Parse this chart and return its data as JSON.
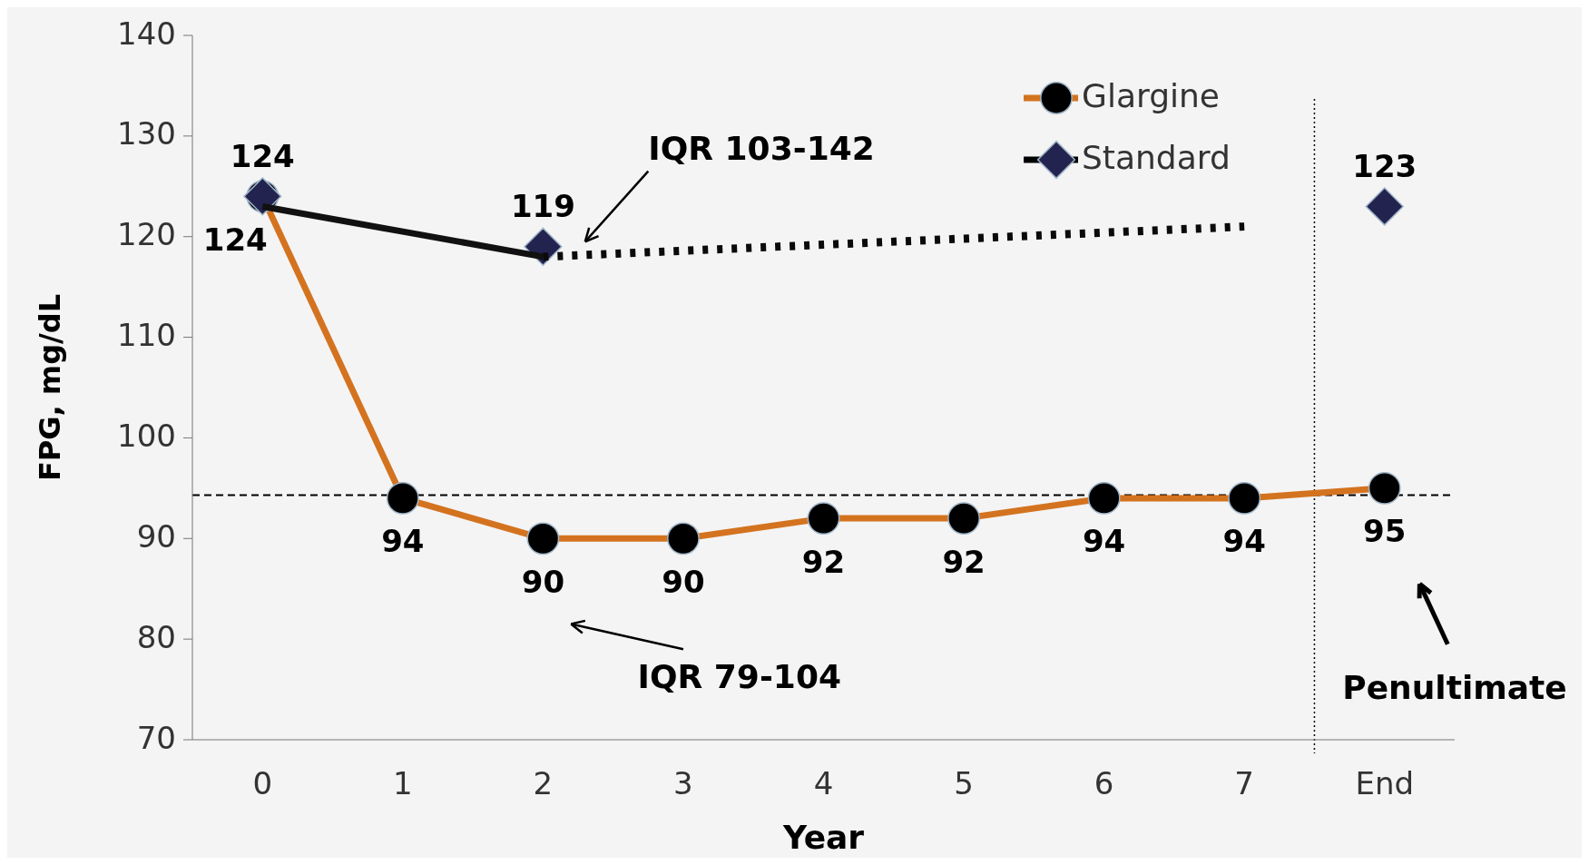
{
  "chart_data": {
    "type": "line",
    "xlabel": "Year",
    "ylabel": "FPG, mg/dL",
    "categories": [
      "0",
      "1",
      "2",
      "3",
      "4",
      "5",
      "6",
      "7",
      "End"
    ],
    "ylim": [
      70,
      140
    ],
    "yticks": [
      70,
      80,
      90,
      100,
      110,
      120,
      130,
      140
    ],
    "grid": false,
    "legend": "top right",
    "series": [
      {
        "name": "Glargine",
        "color": "#d4731f",
        "marker": "circle",
        "values": [
          124,
          94,
          90,
          90,
          92,
          92,
          94,
          94,
          95
        ],
        "value_labels": [
          "124",
          "94",
          "90",
          "90",
          "92",
          "92",
          "94",
          "94",
          "95"
        ]
      },
      {
        "name": "Standard",
        "type": "scatter",
        "color": "#23234f",
        "marker": "diamond",
        "values": [
          124,
          null,
          119,
          null,
          null,
          null,
          null,
          null,
          123
        ],
        "value_labels": [
          "124",
          null,
          "119",
          null,
          null,
          null,
          null,
          null,
          "123"
        ]
      },
      {
        "type": "line",
        "color": "#111111",
        "marker": "none",
        "values": [
          123,
          120.5,
          118,
          null,
          null,
          null,
          null,
          null,
          null
        ]
      },
      {
        "type": "line",
        "color": "#0a0a0a",
        "marker": "none",
        "line_style": "dotted",
        "values": [
          null,
          null,
          118,
          118.6,
          119.2,
          119.8,
          120.4,
          121,
          null
        ]
      }
    ],
    "ref_lines": [
      {
        "axis": "y",
        "value": 94.3,
        "color": "#000000",
        "line_style": "dashed"
      }
    ],
    "annotations": [
      "IQR 103-142",
      "IQR 79-104",
      "Penultimate"
    ]
  }
}
